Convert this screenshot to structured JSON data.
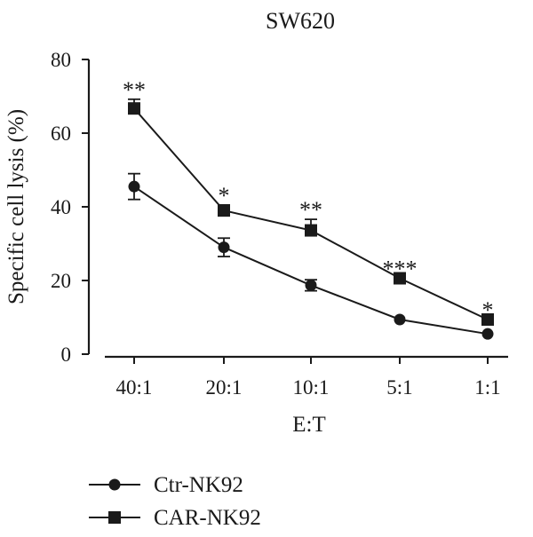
{
  "chart_data": {
    "type": "line",
    "title": "SW620",
    "xlabel": "E:T",
    "ylabel": "Specific cell lysis (%)",
    "categories": [
      "40:1",
      "20:1",
      "10:1",
      "5:1",
      "1:1"
    ],
    "ylim": [
      0,
      80
    ],
    "yticks": [
      0,
      20,
      40,
      60,
      80
    ],
    "grid": false,
    "legend_position": "bottom-left",
    "series": [
      {
        "name": "Ctr-NK92",
        "marker": "circle",
        "values": [
          45.5,
          29,
          18.7,
          9.4,
          5.5
        ],
        "errors": [
          3.5,
          2.5,
          1.5,
          0,
          0
        ]
      },
      {
        "name": "CAR-NK92",
        "marker": "square",
        "values": [
          66.7,
          39,
          33.6,
          20.6,
          9.4
        ],
        "errors": [
          2.5,
          1.5,
          3,
          0,
          0
        ]
      }
    ],
    "significance": [
      "**",
      "*",
      "**",
      "***",
      "*"
    ]
  }
}
